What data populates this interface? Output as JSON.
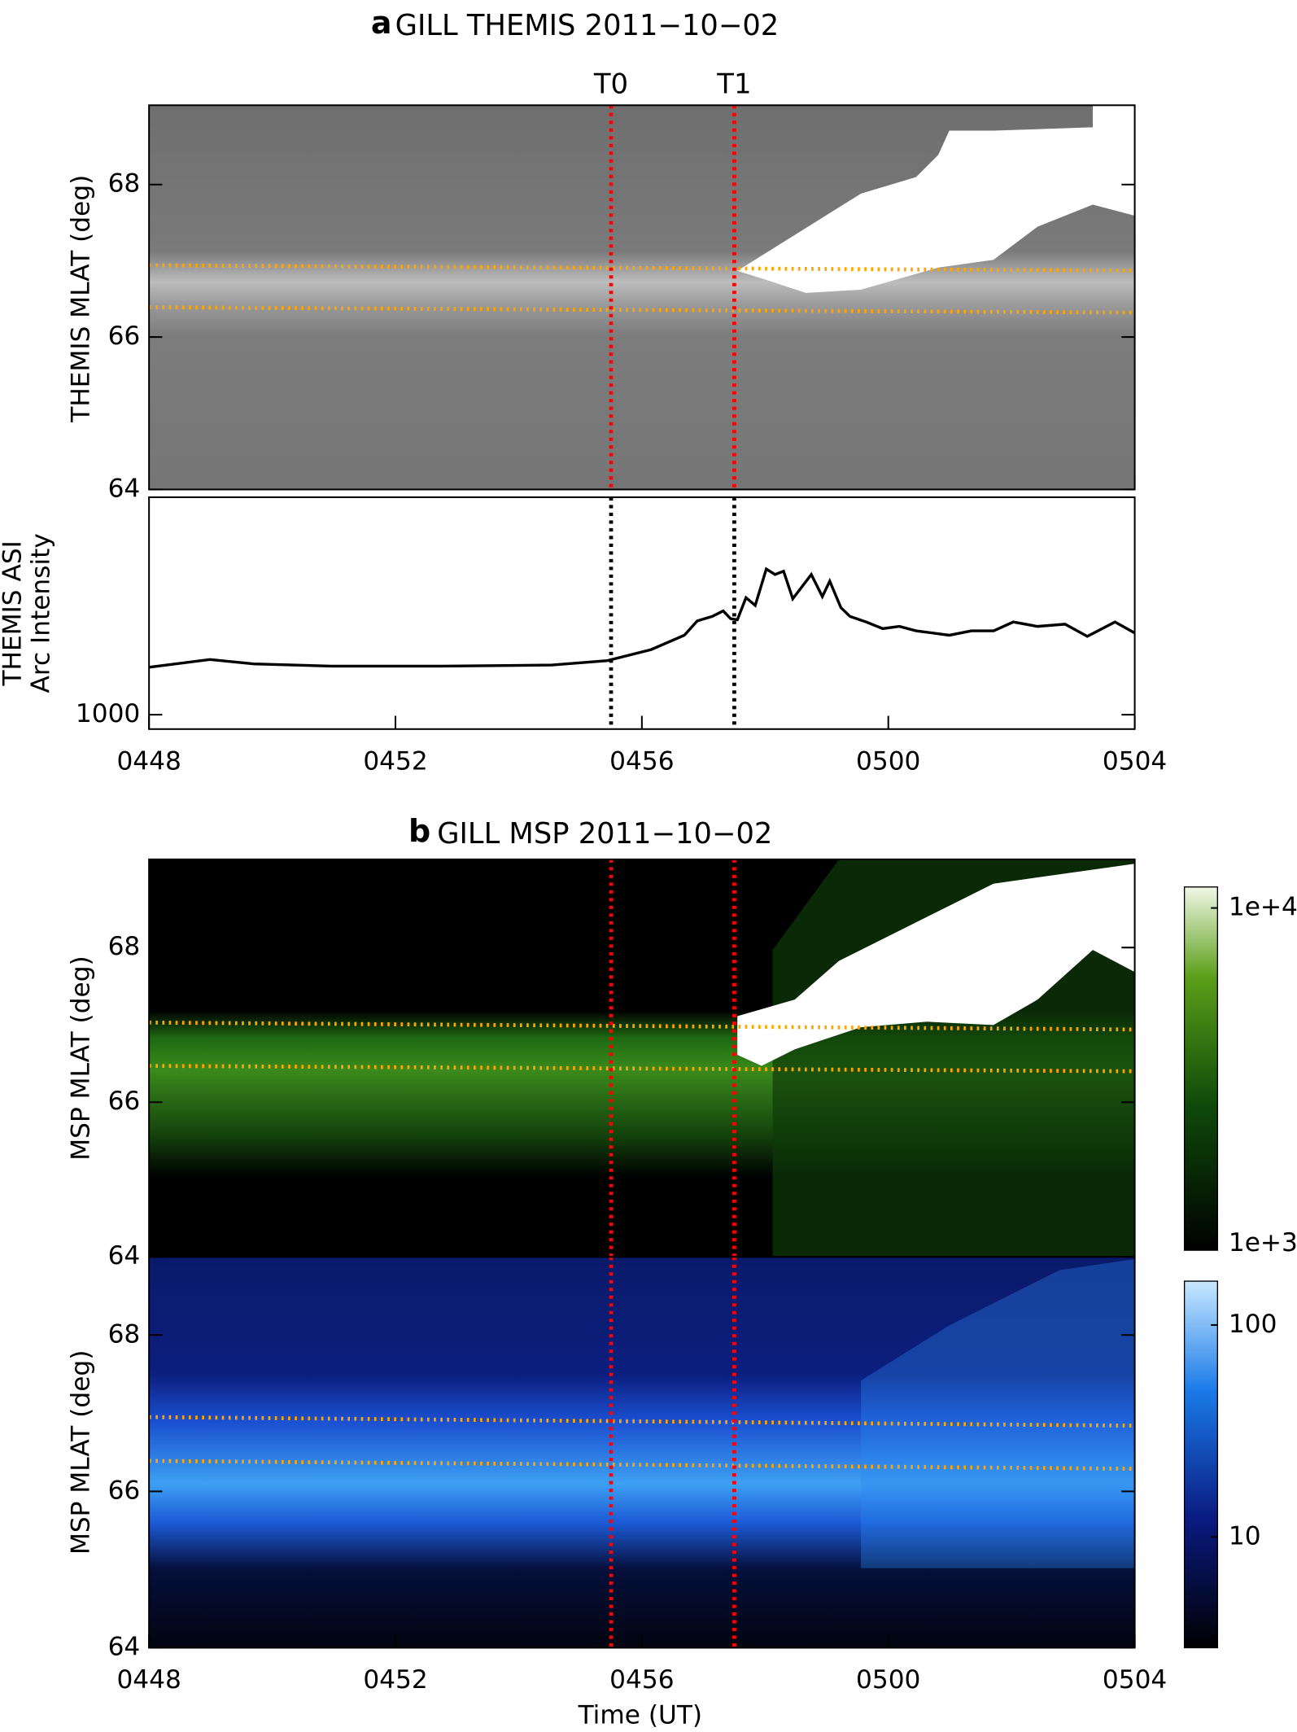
{
  "chart_data": [
    {
      "type": "heatmap",
      "panel_label": "a",
      "title": "GILL THEMIS 2011−10−02",
      "ylabel": "THEMIS MLAT (deg)",
      "xlim": [
        288,
        304
      ],
      "ylim": [
        64,
        69.04
      ],
      "yticks": [
        64,
        66,
        68
      ],
      "markers": [
        {
          "label": "T0",
          "x": 295.5
        },
        {
          "label": "T1",
          "x": 297.5
        }
      ],
      "marker_color": "#ff0000",
      "lines": [
        {
          "x": [
            288,
            304
          ],
          "values": [
            66.94,
            66.87
          ]
        },
        {
          "x": [
            288,
            304
          ],
          "values": [
            66.39,
            66.32
          ]
        }
      ],
      "line_color": "#ffa500"
    },
    {
      "type": "line",
      "ylabel": [
        "THEMIS ASI",
        "Arc Intensity"
      ],
      "color": "#000000",
      "xlim": [
        288,
        304
      ],
      "ylim": [
        806,
        3940
      ],
      "yticks": [
        1000
      ],
      "xticks": [
        {
          "value": 288,
          "label": "0448"
        },
        {
          "value": 292,
          "label": "0452"
        },
        {
          "value": 296,
          "label": "0456"
        },
        {
          "value": 300,
          "label": "0500"
        },
        {
          "value": 304,
          "label": "0504"
        }
      ],
      "markers": [
        {
          "x": 295.5
        },
        {
          "x": 297.5
        }
      ],
      "marker_color": "#000000",
      "x": [
        288,
        288.99,
        289.7,
        290.96,
        292.75,
        294.54,
        295.44,
        296.15,
        296.69,
        296.9,
        297.14,
        297.32,
        297.44,
        297.55,
        297.69,
        297.84,
        298.02,
        298.16,
        298.3,
        298.45,
        298.75,
        298.93,
        299.05,
        299.23,
        299.38,
        299.64,
        299.91,
        300.18,
        300.45,
        300.99,
        301.35,
        301.71,
        302.03,
        302.42,
        302.87,
        303.23,
        303.68,
        304
      ],
      "values": [
        1642,
        1746,
        1687,
        1657,
        1657,
        1672,
        1731,
        1881,
        2075,
        2269,
        2328,
        2403,
        2299,
        2284,
        2582,
        2478,
        2970,
        2896,
        2940,
        2567,
        2896,
        2597,
        2806,
        2448,
        2328,
        2254,
        2164,
        2194,
        2134,
        2075,
        2134,
        2134,
        2254,
        2194,
        2224,
        2060,
        2254,
        2104
      ]
    },
    {
      "type": "heatmap",
      "panel_label": "b",
      "title": "GILL MSP 2011−10−02",
      "ylabel": "MSP MLAT (deg)",
      "xlim": [
        288,
        304
      ],
      "ylim": [
        64,
        69.14
      ],
      "yticks": [
        64,
        66,
        68
      ],
      "markers": [
        {
          "x": 295.5
        },
        {
          "x": 297.5
        }
      ],
      "marker_color": "#ff0000",
      "lines": [
        {
          "x": [
            288,
            304
          ],
          "values": [
            67.03,
            66.94
          ]
        },
        {
          "x": [
            288,
            304
          ],
          "values": [
            66.47,
            66.4
          ]
        }
      ],
      "line_color": "#ffa500",
      "colorbar": {
        "log": true,
        "lim": [
          955,
          11550
        ],
        "ticks": [
          {
            "value": 10000,
            "label": "1e+4"
          },
          {
            "value": 1000,
            "label": "1e+3"
          }
        ]
      }
    },
    {
      "type": "heatmap",
      "ylabel": "MSP MLAT (deg)",
      "xlabel": "Time (UT)",
      "xlim": [
        288,
        304
      ],
      "ylim": [
        64,
        69
      ],
      "yticks": [
        64,
        66,
        68
      ],
      "xticks": [
        {
          "value": 288,
          "label": "0448"
        },
        {
          "value": 292,
          "label": "0452"
        },
        {
          "value": 296,
          "label": "0456"
        },
        {
          "value": 300,
          "label": "0500"
        },
        {
          "value": 304,
          "label": "0504"
        }
      ],
      "markers": [
        {
          "x": 295.5
        },
        {
          "x": 297.5
        }
      ],
      "marker_color": "#ff0000",
      "lines": [
        {
          "x": [
            288,
            304
          ],
          "values": [
            66.95,
            66.84
          ]
        },
        {
          "x": [
            288,
            304
          ],
          "values": [
            66.39,
            66.29
          ]
        }
      ],
      "line_color": "#ffa500",
      "colorbar": {
        "log": true,
        "lim": [
          3,
          161
        ],
        "ticks": [
          100,
          10
        ]
      }
    }
  ]
}
